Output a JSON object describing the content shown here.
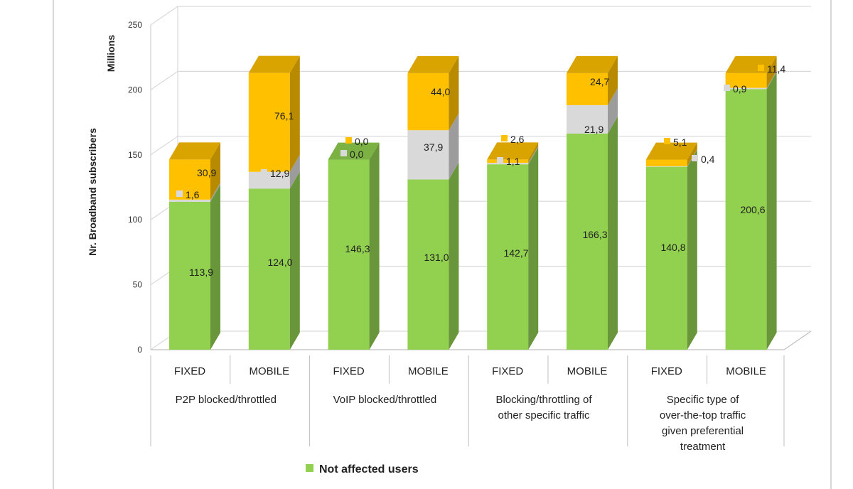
{
  "chart_data": {
    "type": "bar",
    "stacked": true,
    "three_d": true,
    "ylabel": "Nr. Broadband subscribers",
    "yunit_label": "Millions",
    "ylim": [
      0,
      250
    ],
    "yticks": [
      "0",
      "50",
      "100",
      "150",
      "200",
      "250"
    ],
    "groups": [
      {
        "label": "P2P blocked/throttled",
        "categories": [
          "FIXED",
          "MOBILE"
        ]
      },
      {
        "label": "VoIP blocked/throttled",
        "categories": [
          "FIXED",
          "MOBILE"
        ]
      },
      {
        "label": "Blocking/throttling of other specific traffic",
        "categories": [
          "FIXED",
          "MOBILE"
        ]
      },
      {
        "label": "Specific type of over-the-top traffic given preferential treatment",
        "categories": [
          "FIXED",
          "MOBILE"
        ]
      }
    ],
    "series": [
      {
        "name": "Not affected users",
        "color": "#92d050",
        "values": [
          113.9,
          124.0,
          146.3,
          131.0,
          142.7,
          166.3,
          140.8,
          200.6
        ],
        "labels": [
          "113,9",
          "124,0",
          "146,3",
          "131,0",
          "142,7",
          "166,3",
          "140,8",
          "200,6"
        ]
      },
      {
        "color": "#d9d9d9",
        "values": [
          1.6,
          12.9,
          0.0,
          37.9,
          1.1,
          21.9,
          0.4,
          0.9
        ],
        "labels": [
          "1,6",
          "12,9",
          "0,0",
          "37,9",
          "1,1",
          "21,9",
          "0,4",
          "0,9"
        ]
      },
      {
        "color": "#ffc000",
        "values": [
          30.9,
          76.1,
          0.0,
          44.0,
          2.6,
          24.7,
          5.1,
          11.4
        ],
        "labels": [
          "30,9",
          "76,1",
          "0,0",
          "44,0",
          "2,6",
          "24,7",
          "5,1",
          "11,4"
        ]
      }
    ],
    "legend": {
      "position": "bottom",
      "items": [
        "Not affected users"
      ]
    },
    "grid": true
  }
}
